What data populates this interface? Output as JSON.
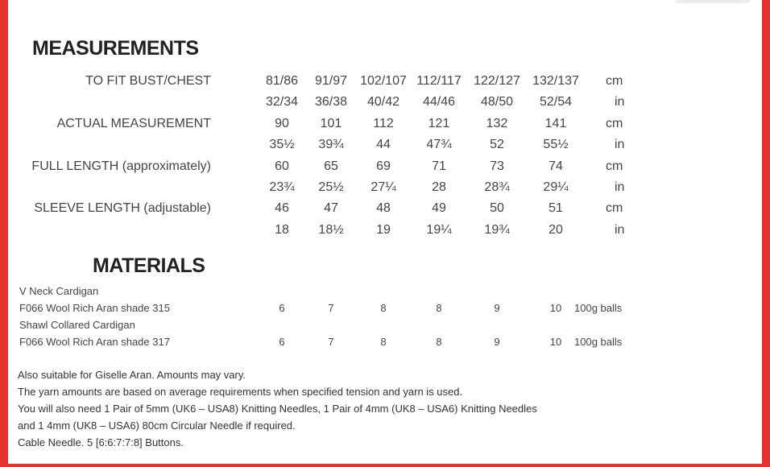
{
  "measurements": {
    "heading": "MEASUREMENTS",
    "rows": [
      {
        "label": "TO FIT BUST/CHEST",
        "values": [
          "81/86",
          "91/97",
          "102/107",
          "112/117",
          "122/127",
          "132/137"
        ],
        "unit": "cm"
      },
      {
        "label": "",
        "values": [
          "32/34",
          "36/38",
          "40/42",
          "44/46",
          "48/50",
          "52/54"
        ],
        "unit": "in"
      },
      {
        "label": "ACTUAL MEASUREMENT",
        "values": [
          "90",
          "101",
          "112",
          "121",
          "132",
          "141"
        ],
        "unit": "cm"
      },
      {
        "label": "",
        "values": [
          "35½",
          "39¾",
          "44",
          "47¾",
          "52",
          "55½"
        ],
        "unit": "in"
      },
      {
        "label": "FULL LENGTH (approximately)",
        "values": [
          "60",
          "65",
          "69",
          "71",
          "73",
          "74"
        ],
        "unit": "cm"
      },
      {
        "label": "",
        "values": [
          "23¾",
          "25½",
          "27¼",
          "28",
          "28¾",
          "29¼"
        ],
        "unit": "in"
      },
      {
        "label": "SLEEVE LENGTH (adjustable)",
        "values": [
          "46",
          "47",
          "48",
          "49",
          "50",
          "51"
        ],
        "unit": "cm"
      },
      {
        "label": "",
        "values": [
          "18",
          "18½",
          "19",
          "19¼",
          "19¾",
          "20"
        ],
        "unit": "in"
      }
    ]
  },
  "materials": {
    "heading": "MATERIALS",
    "rows": [
      {
        "label": "V Neck Cardigan",
        "values": [],
        "unit": ""
      },
      {
        "label": "F066 Wool Rich Aran shade 315",
        "values": [
          "6",
          "7",
          "8",
          "8",
          "9",
          "10"
        ],
        "unit": "100g balls"
      },
      {
        "label": "Shawl Collared Cardigan",
        "values": [],
        "unit": ""
      },
      {
        "label": "F066 Wool Rich Aran shade 317",
        "values": [
          "6",
          "7",
          "8",
          "8",
          "9",
          "10"
        ],
        "unit": "100g balls"
      }
    ]
  },
  "notes": [
    "Also suitable for Giselle Aran. Amounts may vary.",
    "The yarn amounts are based on average requirements when specified tension and yarn is used.",
    "You will also need 1 Pair of 5mm (UK6 – USA8) Knitting Needles, 1 Pair of 4mm (UK8 – USA6) Knitting Needles",
    "and 1 4mm (UK8 – USA6) 80cm Circular Needle if required.",
    "Cable Needle. 5 [6:6:7:7:8] Buttons."
  ],
  "colors": {
    "border": "#e8322f"
  }
}
